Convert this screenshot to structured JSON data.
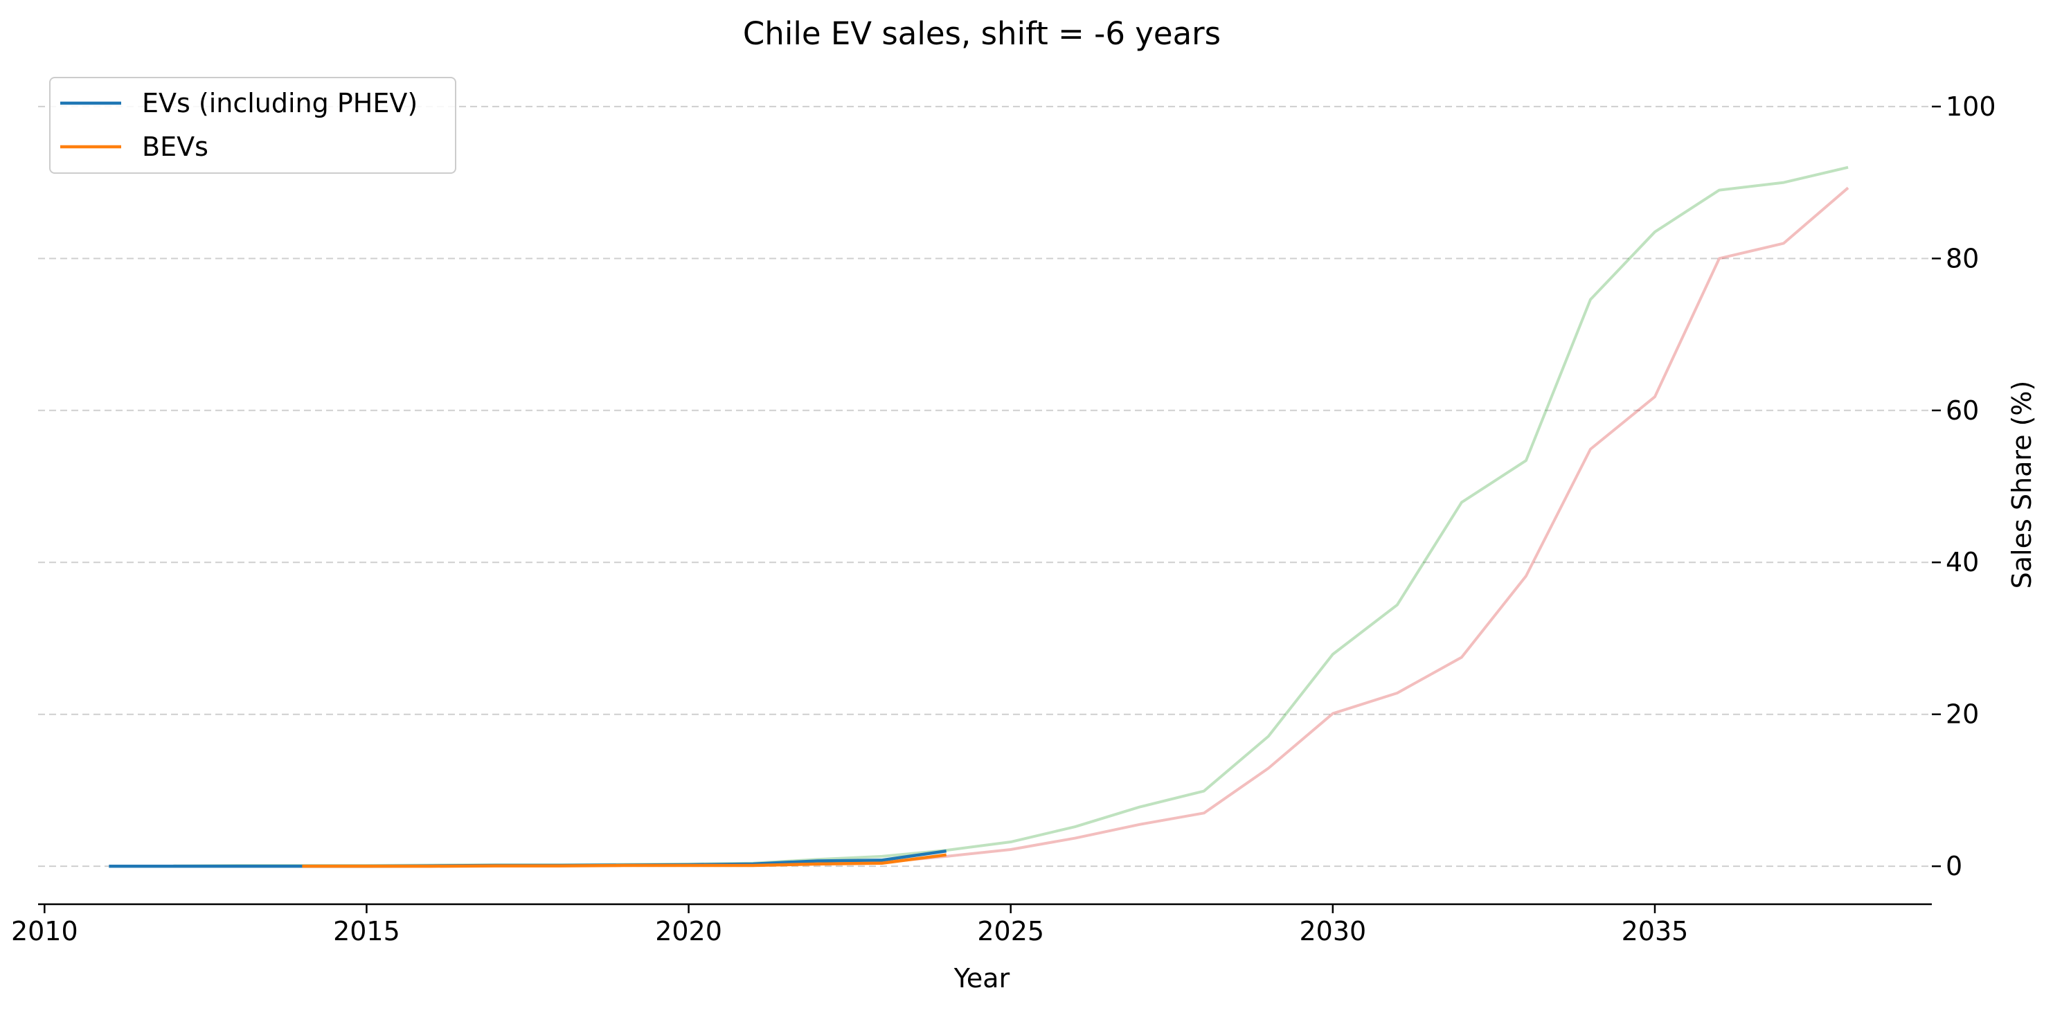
{
  "chart_data": {
    "type": "line",
    "title": "Chile EV sales, shift = -6 years",
    "xlabel": "Year",
    "ylabel": "Sales Share (%)",
    "xlim": [
      2009.9,
      2039.3
    ],
    "ylim": [
      -5,
      104
    ],
    "x_ticks": [
      2010,
      2015,
      2020,
      2025,
      2030,
      2035
    ],
    "y_ticks": [
      0,
      20,
      40,
      60,
      80,
      100
    ],
    "y_axis_side": "right",
    "grid": "horizontal dashed",
    "legend_position": "top-left",
    "series": [
      {
        "name": "EVs (including PHEV)",
        "color": "#1f77b4",
        "x": [
          2011,
          2012,
          2013,
          2014,
          2015,
          2016,
          2017,
          2018,
          2019,
          2020,
          2021,
          2022,
          2023,
          2024
        ],
        "y": [
          0.0,
          0.0,
          0.0,
          0.0,
          0.0,
          0.05,
          0.1,
          0.1,
          0.15,
          0.2,
          0.3,
          0.7,
          0.8,
          2.0
        ]
      },
      {
        "name": "BEVs",
        "color": "#ff7f0e",
        "x": [
          2014,
          2015,
          2016,
          2017,
          2018,
          2019,
          2020,
          2021,
          2022,
          2023,
          2024
        ],
        "y": [
          0.0,
          0.0,
          0.0,
          0.05,
          0.05,
          0.1,
          0.1,
          0.1,
          0.3,
          0.4,
          1.5
        ]
      }
    ],
    "background_series": [
      {
        "color": "#2ca02c",
        "opacity": 0.3,
        "x": [
          2012,
          2013,
          2014,
          2015,
          2016,
          2017,
          2018,
          2019,
          2020,
          2021,
          2022,
          2023,
          2024,
          2025,
          2026,
          2027,
          2028,
          2029,
          2030,
          2031,
          2032,
          2033,
          2034,
          2035,
          2036,
          2037,
          2038
        ],
        "y": [
          0.05,
          0.1,
          0.1,
          0.1,
          0.15,
          0.2,
          0.2,
          0.25,
          0.3,
          0.4,
          0.9,
          1.3,
          2.1,
          3.2,
          5.2,
          7.8,
          9.9,
          17.1,
          27.9,
          34.4,
          47.9,
          53.4,
          74.6,
          83.5,
          89.0,
          90.0,
          92.0
        ]
      },
      {
        "color": "#d62728",
        "opacity": 0.3,
        "x": [
          2015,
          2016,
          2017,
          2018,
          2019,
          2020,
          2021,
          2022,
          2023,
          2024,
          2025,
          2026,
          2027,
          2028,
          2029,
          2030,
          2031,
          2032,
          2033,
          2034,
          2035,
          2036,
          2037,
          2038
        ],
        "y": [
          0.0,
          0.0,
          0.05,
          0.05,
          0.1,
          0.1,
          0.1,
          0.3,
          0.5,
          1.3,
          2.2,
          3.7,
          5.5,
          7.0,
          12.9,
          20.1,
          22.8,
          27.5,
          38.2,
          54.9,
          61.8,
          80.0,
          82.0,
          89.3
        ]
      }
    ]
  }
}
